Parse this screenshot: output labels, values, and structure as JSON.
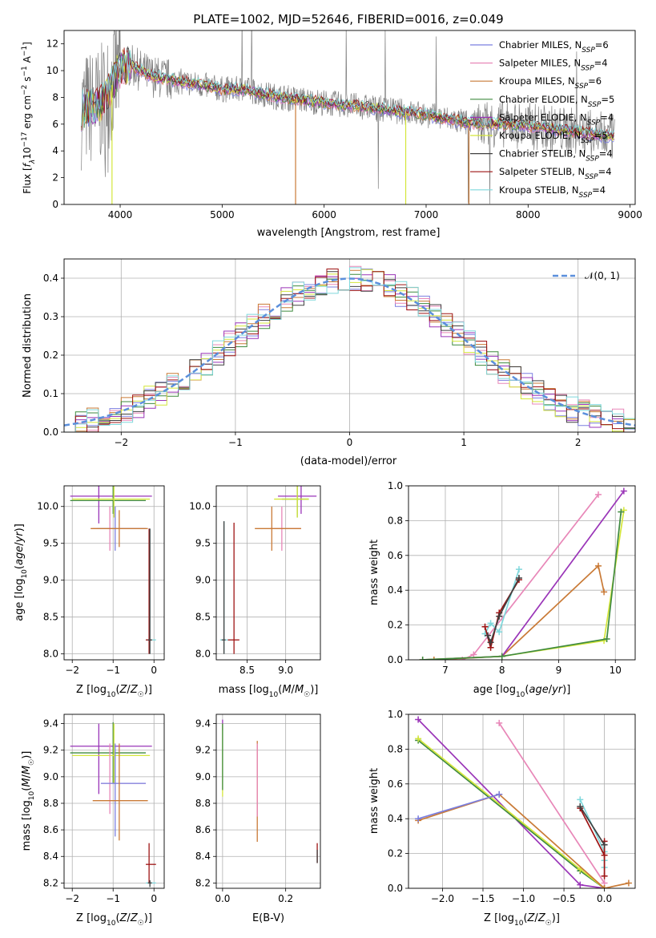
{
  "figure": {
    "title": "PLATE=1002, MJD=52646, FIBERID=0016, z=0.049"
  },
  "colors": {
    "Chabrier MILES": "#7b7fe0",
    "Salpeter MILES": "#e887b8",
    "Kroupa MILES": "#c97a36",
    "Chabrier ELODIE": "#3f8a3f",
    "Salpeter ELODIE": "#9a35b8",
    "Kroupa ELODIE": "#d4e63a",
    "Chabrier STELIB": "#404040",
    "Salpeter STELIB": "#9e1414",
    "Kroupa STELIB": "#7fd8dc",
    "data": "#808080",
    "normal": "#5b8fdc"
  },
  "chart_data": [
    {
      "id": "spectrum",
      "type": "line",
      "xlabel": "wavelength [Angstrom, rest frame]",
      "ylabel": "Flux [f_λ10^-17 erg cm^-2 s^-1 A^-1]",
      "xlim": [
        3450,
        9050
      ],
      "ylim": [
        0,
        13
      ],
      "xticks": [
        4000,
        5000,
        6000,
        7000,
        8000,
        9000
      ],
      "yticks": [
        0,
        2,
        4,
        6,
        8,
        10,
        12
      ],
      "grid": false,
      "legend_position": "right",
      "continuum_points": [
        [
          3600,
          7.0
        ],
        [
          3800,
          7.4
        ],
        [
          3900,
          8.6
        ],
        [
          4000,
          10.2
        ],
        [
          4100,
          10.4
        ],
        [
          4300,
          9.6
        ],
        [
          4500,
          9.3
        ],
        [
          4800,
          8.9
        ],
        [
          5000,
          8.6
        ],
        [
          5200,
          8.6
        ],
        [
          5500,
          8.1
        ],
        [
          6000,
          7.6
        ],
        [
          6500,
          7.2
        ],
        [
          7000,
          6.7
        ],
        [
          7400,
          6.1
        ],
        [
          7800,
          6.0
        ],
        [
          8200,
          5.7
        ],
        [
          8600,
          5.3
        ],
        [
          8850,
          5.0
        ]
      ],
      "series": [
        {
          "name": "Chabrier MILES",
          "n_ssp": 6
        },
        {
          "name": "Salpeter MILES",
          "n_ssp": 4
        },
        {
          "name": "Kroupa MILES",
          "n_ssp": 6
        },
        {
          "name": "Chabrier ELODIE",
          "n_ssp": 5
        },
        {
          "name": "Salpeter ELODIE",
          "n_ssp": 4
        },
        {
          "name": "Kroupa ELODIE",
          "n_ssp": 5
        },
        {
          "name": "Chabrier STELIB",
          "n_ssp": 4
        },
        {
          "name": "Salpeter STELIB",
          "n_ssp": 4
        },
        {
          "name": "Kroupa STELIB",
          "n_ssp": 4
        }
      ]
    },
    {
      "id": "residuals",
      "type": "area",
      "xlabel": "(data-model)/error",
      "ylabel": "Normed distribution",
      "xlim": [
        -2.5,
        2.5
      ],
      "ylim": [
        0,
        0.45
      ],
      "xticks": [
        -2,
        -1,
        0,
        1,
        2
      ],
      "yticks": [
        0.0,
        0.1,
        0.2,
        0.3,
        0.4
      ],
      "grid": true,
      "legend": [
        "N(0,1)"
      ],
      "legend_position": "top-right"
    },
    {
      "id": "age_vs_Z",
      "type": "scatter",
      "xlabel": "Z [log10(Z/Z☉)]",
      "ylabel": "age [log10(age/yr)]",
      "xlim": [
        -2.2,
        0.25
      ],
      "ylim": [
        7.92,
        10.28
      ],
      "xticks": [
        -2,
        -1,
        0
      ],
      "yticks": [
        8.0,
        8.5,
        9.0,
        9.5,
        10.0
      ],
      "grid": true,
      "crosses": [
        {
          "s": "Salpeter ELODIE",
          "x": -1.35,
          "y": 10.14,
          "ex": [
            -2.05,
            -0.05
          ],
          "ey": [
            9.77,
            10.28
          ]
        },
        {
          "s": "Chabrier ELODIE",
          "x": -1.0,
          "y": 10.08,
          "ex": [
            -2.05,
            -0.2
          ],
          "ey": [
            9.9,
            10.28
          ]
        },
        {
          "s": "Kroupa ELODIE",
          "x": -0.98,
          "y": 10.1,
          "ex": [
            -2.0,
            -0.1
          ],
          "ey": [
            9.85,
            10.28
          ]
        },
        {
          "s": "Salpeter MILES",
          "x": -1.08,
          "y": 9.7,
          "ex": [
            -1.5,
            -0.2
          ],
          "ey": [
            9.4,
            10.0
          ]
        },
        {
          "s": "Chabrier MILES",
          "x": -0.95,
          "y": 9.7,
          "ex": [
            -1.4,
            -0.2
          ],
          "ey": [
            9.4,
            10.0
          ]
        },
        {
          "s": "Kroupa MILES",
          "x": -0.85,
          "y": 9.7,
          "ex": [
            -1.55,
            -0.15
          ],
          "ey": [
            9.45,
            9.95
          ]
        },
        {
          "s": "Kroupa STELIB",
          "x": -0.1,
          "y": 8.19,
          "ex": [
            -0.2,
            0.05
          ],
          "ey": [
            8.0,
            9.7
          ]
        },
        {
          "s": "Salpeter STELIB",
          "x": -0.12,
          "y": 8.19,
          "ex": [
            -0.2,
            -0.05
          ],
          "ey": [
            8.0,
            9.7
          ]
        },
        {
          "s": "Chabrier STELIB",
          "x": -0.1,
          "y": 8.19,
          "ex": [
            -0.15,
            -0.05
          ],
          "ey": [
            8.0,
            9.7
          ]
        }
      ]
    },
    {
      "id": "age_vs_mass",
      "type": "scatter",
      "xlabel": "mass [log10(M/M☉)]",
      "ylabel": "",
      "xlim": [
        8.1,
        9.45
      ],
      "ylim": [
        7.92,
        10.28
      ],
      "xticks": [
        8.5,
        9.0
      ],
      "yticks": [
        8.0,
        8.5,
        9.0,
        9.5,
        10.0
      ],
      "grid": true,
      "crosses": [
        {
          "s": "Salpeter ELODIE",
          "x": 9.2,
          "y": 10.14,
          "ex": [
            8.9,
            9.4
          ],
          "ey": [
            9.9,
            10.28
          ]
        },
        {
          "s": "Chabrier ELODIE",
          "x": 9.15,
          "y": 10.1,
          "ex": [
            8.95,
            9.3
          ],
          "ey": [
            9.85,
            10.28
          ]
        },
        {
          "s": "Kroupa ELODIE",
          "x": 9.15,
          "y": 10.1,
          "ex": [
            8.85,
            9.3
          ],
          "ey": [
            9.85,
            10.28
          ]
        },
        {
          "s": "Salpeter MILES",
          "x": 8.95,
          "y": 9.7,
          "ex": [
            8.8,
            9.2
          ],
          "ey": [
            9.4,
            10.0
          ]
        },
        {
          "s": "Kroupa MILES",
          "x": 8.82,
          "y": 9.7,
          "ex": [
            8.6,
            9.2
          ],
          "ey": [
            9.4,
            10.0
          ]
        },
        {
          "s": "Salpeter STELIB",
          "x": 8.33,
          "y": 8.19,
          "ex": [
            8.25,
            8.4
          ],
          "ey": [
            8.0,
            9.78
          ]
        },
        {
          "s": "Kroupa STELIB",
          "x": 8.2,
          "y": 8.19,
          "ex": [
            8.15,
            8.25
          ],
          "ey": [
            8.0,
            9.8
          ]
        },
        {
          "s": "Chabrier STELIB",
          "x": 8.2,
          "y": 8.19,
          "ex": [
            8.17,
            8.22
          ],
          "ey": [
            8.0,
            9.8
          ]
        }
      ]
    },
    {
      "id": "weight_vs_age",
      "type": "line",
      "xlabel": "age [log10(age/yr)]",
      "ylabel": "mass weight",
      "xlim": [
        6.35,
        10.35
      ],
      "ylim": [
        0,
        1.0
      ],
      "xticks": [
        7,
        8,
        9,
        10
      ],
      "yticks": [
        0.0,
        0.2,
        0.4,
        0.6,
        0.8,
        1.0
      ],
      "grid": true,
      "series": [
        {
          "s": "Salpeter MILES",
          "x": [
            7.3,
            7.5,
            9.7
          ],
          "y": [
            0.0,
            0.03,
            0.95
          ]
        },
        {
          "s": "Kroupa MILES",
          "x": [
            6.8,
            8.0,
            9.7,
            9.8
          ],
          "y": [
            0.0,
            0.02,
            0.54,
            0.39
          ]
        },
        {
          "s": "Salpeter ELODIE",
          "x": [
            6.6,
            8.0,
            10.15
          ],
          "y": [
            0.0,
            0.02,
            0.97
          ]
        },
        {
          "s": "Kroupa ELODIE",
          "x": [
            6.6,
            8.0,
            9.8,
            10.15
          ],
          "y": [
            0.0,
            0.02,
            0.11,
            0.86
          ]
        },
        {
          "s": "Chabrier ELODIE",
          "x": [
            6.6,
            8.0,
            9.85,
            10.1
          ],
          "y": [
            0.0,
            0.02,
            0.12,
            0.85
          ]
        },
        {
          "s": "Kroupa STELIB",
          "x": [
            7.7,
            7.8,
            7.95,
            8.3
          ],
          "y": [
            0.15,
            0.21,
            0.16,
            0.52
          ]
        },
        {
          "s": "Salpeter STELIB",
          "x": [
            7.7,
            7.8,
            7.95,
            8.3
          ],
          "y": [
            0.19,
            0.07,
            0.27,
            0.46
          ]
        },
        {
          "s": "Chabrier STELIB",
          "x": [
            7.75,
            7.8,
            7.95,
            8.3
          ],
          "y": [
            0.14,
            0.1,
            0.25,
            0.47
          ]
        }
      ]
    },
    {
      "id": "mass_vs_Z",
      "type": "scatter",
      "xlabel": "Z [log10(Z/Z☉)]",
      "ylabel": "mass [log10(M/M☉)]",
      "xlim": [
        -2.2,
        0.25
      ],
      "ylim": [
        8.16,
        9.47
      ],
      "xticks": [
        -2,
        -1,
        0
      ],
      "yticks": [
        8.2,
        8.4,
        8.6,
        8.8,
        9.0,
        9.2,
        9.4
      ],
      "grid": true,
      "crosses": [
        {
          "s": "Salpeter ELODIE",
          "x": -1.35,
          "y": 9.23,
          "ex": [
            -2.05,
            -0.05
          ],
          "ey": [
            8.87,
            9.4
          ]
        },
        {
          "s": "Chabrier ELODIE",
          "x": -1.0,
          "y": 9.18,
          "ex": [
            -2.05,
            -0.2
          ],
          "ey": [
            8.95,
            9.41
          ]
        },
        {
          "s": "Kroupa ELODIE",
          "x": -0.98,
          "y": 9.16,
          "ex": [
            -2.0,
            -0.1
          ],
          "ey": [
            8.95,
            9.4
          ]
        },
        {
          "s": "Salpeter MILES",
          "x": -1.08,
          "y": 8.95,
          "ex": [
            -1.3,
            -0.2
          ],
          "ey": [
            8.72,
            9.25
          ]
        },
        {
          "s": "Chabrier MILES",
          "x": -0.95,
          "y": 8.95,
          "ex": [
            -1.3,
            -0.2
          ],
          "ey": [
            8.55,
            9.25
          ]
        },
        {
          "s": "Kroupa MILES",
          "x": -0.85,
          "y": 8.82,
          "ex": [
            -1.5,
            -0.15
          ],
          "ey": [
            8.52,
            9.25
          ]
        },
        {
          "s": "Salpeter STELIB",
          "x": -0.12,
          "y": 8.34,
          "ex": [
            -0.2,
            0.05
          ],
          "ey": [
            8.2,
            8.5
          ]
        },
        {
          "s": "Kroupa STELIB",
          "x": -0.1,
          "y": 8.2,
          "ex": [
            -0.2,
            0.05
          ],
          "ey": [
            8.17,
            8.22
          ]
        },
        {
          "s": "Chabrier STELIB",
          "x": -0.1,
          "y": 8.2,
          "ex": [
            -0.15,
            -0.05
          ],
          "ey": [
            8.17,
            8.22
          ]
        }
      ]
    },
    {
      "id": "mass_vs_EBV",
      "type": "scatter",
      "xlabel": "E(B-V)",
      "ylabel": "",
      "xlim": [
        -0.02,
        0.31
      ],
      "ylim": [
        8.16,
        9.47
      ],
      "xticks": [
        0.0,
        0.2
      ],
      "yticks": [
        8.2,
        8.4,
        8.6,
        8.8,
        9.0,
        9.2,
        9.4
      ],
      "grid": true,
      "crosses": [
        {
          "s": "Salpeter ELODIE",
          "x": 0.0,
          "y": 9.4,
          "ex": [
            0.0,
            0.0
          ],
          "ey": [
            9.35,
            9.43
          ]
        },
        {
          "s": "Kroupa ELODIE",
          "x": 0.0,
          "y": 9.16,
          "ex": [
            0.0,
            0.0
          ],
          "ey": [
            8.85,
            9.4
          ]
        },
        {
          "s": "Chabrier ELODIE",
          "x": 0.0,
          "y": 9.18,
          "ex": [
            0.0,
            0.0
          ],
          "ey": [
            8.9,
            9.4
          ]
        },
        {
          "s": "Kroupa MILES",
          "x": 0.11,
          "y": 8.82,
          "ex": [
            0.11,
            0.11
          ],
          "ey": [
            8.51,
            9.27
          ]
        },
        {
          "s": "Salpeter MILES",
          "x": 0.11,
          "y": 8.95,
          "ex": [
            0.11,
            0.11
          ],
          "ey": [
            8.7,
            9.25
          ]
        },
        {
          "s": "Salpeter STELIB",
          "x": 0.3,
          "y": 8.4,
          "ex": [
            0.3,
            0.3
          ],
          "ey": [
            8.35,
            8.5
          ]
        },
        {
          "s": "Chabrier STELIB",
          "x": 0.3,
          "y": 8.38,
          "ex": [
            0.3,
            0.3
          ],
          "ey": [
            8.35,
            8.45
          ]
        }
      ]
    },
    {
      "id": "weight_vs_Z",
      "type": "line",
      "xlabel": "Z [log10(Z/Z☉)]",
      "ylabel": "mass weight",
      "xlim": [
        -2.42,
        0.38
      ],
      "ylim": [
        0,
        1.0
      ],
      "xticks": [
        -2.0,
        -1.5,
        -1.0,
        -0.5,
        0.0
      ],
      "yticks": [
        0.0,
        0.2,
        0.4,
        0.6,
        0.8,
        1.0
      ],
      "grid": true,
      "series": [
        {
          "s": "Salpeter ELODIE",
          "x": [
            -2.3,
            -0.3,
            0.0
          ],
          "y": [
            0.97,
            0.02,
            0.0
          ]
        },
        {
          "s": "Chabrier ELODIE",
          "x": [
            -2.3,
            -0.3,
            0.0
          ],
          "y": [
            0.85,
            0.1,
            0.0
          ]
        },
        {
          "s": "Kroupa ELODIE",
          "x": [
            -2.3,
            -0.3,
            0.0
          ],
          "y": [
            0.86,
            0.11,
            0.0
          ]
        },
        {
          "s": "Salpeter MILES",
          "x": [
            -1.3,
            0.0
          ],
          "y": [
            0.95,
            0.03
          ]
        },
        {
          "s": "Kroupa MILES",
          "x": [
            -2.3,
            -1.3,
            0.0,
            0.3
          ],
          "y": [
            0.39,
            0.54,
            0.0,
            0.03
          ]
        },
        {
          "s": "Chabrier MILES",
          "x": [
            -2.3,
            -1.3
          ],
          "y": [
            0.4,
            0.54
          ]
        },
        {
          "s": "Kroupa STELIB",
          "x": [
            -0.3,
            0.0,
            0.0,
            0.0
          ],
          "y": [
            0.51,
            0.21,
            0.16,
            0.12
          ]
        },
        {
          "s": "Salpeter STELIB",
          "x": [
            -0.3,
            0.0,
            0.0,
            0.0
          ],
          "y": [
            0.46,
            0.19,
            0.27,
            0.07
          ]
        },
        {
          "s": "Chabrier STELIB",
          "x": [
            -0.3,
            0.0
          ],
          "y": [
            0.47,
            0.25
          ]
        }
      ]
    }
  ]
}
